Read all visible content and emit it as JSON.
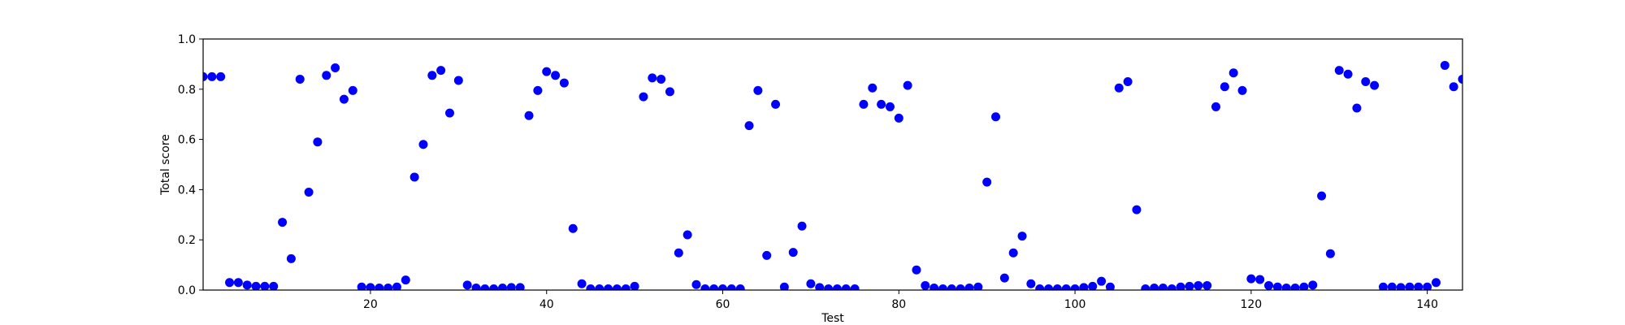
{
  "chart_data": {
    "type": "scatter",
    "title": "",
    "xlabel": "Test",
    "ylabel": "Total score",
    "xlim": [
      1,
      144
    ],
    "ylim": [
      0,
      1
    ],
    "xticks": [
      20,
      40,
      60,
      80,
      100,
      120,
      140
    ],
    "yticks": [
      0.0,
      0.2,
      0.4,
      0.6,
      0.8,
      1.0
    ],
    "xtick_labels": [
      "20",
      "40",
      "60",
      "80",
      "100",
      "120",
      "140"
    ],
    "ytick_labels": [
      "0.0",
      "0.2",
      "0.4",
      "0.6",
      "0.8",
      "1.0"
    ],
    "grid": false,
    "legend": "none",
    "marker_color": "#0000ff",
    "series": [
      {
        "x": [
          1,
          2,
          3,
          4,
          5,
          6,
          7,
          8,
          9,
          10,
          11,
          12,
          13,
          14,
          15,
          16,
          17,
          18,
          19,
          20,
          21,
          22,
          23,
          24,
          25,
          26,
          27,
          28,
          29,
          30,
          31,
          32,
          33,
          34,
          35,
          36,
          37,
          38,
          39,
          40,
          41,
          42,
          43,
          44,
          45,
          46,
          47,
          48,
          49,
          50,
          51,
          52,
          53,
          54,
          55,
          56,
          57,
          58,
          59,
          60,
          61,
          62,
          63,
          64,
          65,
          66,
          67,
          68,
          69,
          70,
          71,
          72,
          73,
          74,
          75,
          76,
          77,
          78,
          79,
          80,
          81,
          82,
          83,
          84,
          85,
          86,
          87,
          88,
          89,
          90,
          91,
          92,
          93,
          94,
          95,
          96,
          97,
          98,
          99,
          100,
          101,
          102,
          103,
          104,
          105,
          106,
          107,
          108,
          109,
          110,
          111,
          112,
          113,
          114,
          115,
          116,
          117,
          118,
          119,
          120,
          121,
          122,
          123,
          124,
          125,
          126,
          127,
          128,
          129,
          130,
          131,
          132,
          133,
          134,
          135,
          136,
          137,
          138,
          139,
          140,
          141,
          142,
          143,
          144
        ],
        "y": [
          0.85,
          0.85,
          0.85,
          0.03,
          0.03,
          0.02,
          0.015,
          0.015,
          0.015,
          0.27,
          0.125,
          0.84,
          0.39,
          0.59,
          0.855,
          0.885,
          0.76,
          0.795,
          0.012,
          0.01,
          0.008,
          0.008,
          0.012,
          0.04,
          0.45,
          0.58,
          0.855,
          0.875,
          0.705,
          0.835,
          0.02,
          0.008,
          0.005,
          0.005,
          0.008,
          0.01,
          0.01,
          0.695,
          0.795,
          0.87,
          0.855,
          0.825,
          0.245,
          0.025,
          0.005,
          0.005,
          0.005,
          0.005,
          0.005,
          0.015,
          0.77,
          0.845,
          0.84,
          0.79,
          0.148,
          0.22,
          0.022,
          0.005,
          0.005,
          0.005,
          0.005,
          0.005,
          0.655,
          0.795,
          0.138,
          0.74,
          0.012,
          0.15,
          0.255,
          0.025,
          0.01,
          0.005,
          0.005,
          0.005,
          0.005,
          0.74,
          0.805,
          0.74,
          0.73,
          0.685,
          0.815,
          0.08,
          0.018,
          0.008,
          0.005,
          0.005,
          0.005,
          0.008,
          0.012,
          0.43,
          0.69,
          0.048,
          0.148,
          0.215,
          0.025,
          0.005,
          0.005,
          0.005,
          0.005,
          0.005,
          0.01,
          0.015,
          0.035,
          0.012,
          0.805,
          0.83,
          0.32,
          0.005,
          0.008,
          0.008,
          0.005,
          0.012,
          0.015,
          0.018,
          0.018,
          0.73,
          0.81,
          0.865,
          0.795,
          0.045,
          0.042,
          0.018,
          0.012,
          0.008,
          0.008,
          0.012,
          0.02,
          0.375,
          0.145,
          0.875,
          0.86,
          0.725,
          0.83,
          0.815,
          0.012,
          0.012,
          0.01,
          0.012,
          0.012,
          0.012,
          0.03,
          0.895,
          0.81,
          0.84
        ]
      }
    ]
  }
}
